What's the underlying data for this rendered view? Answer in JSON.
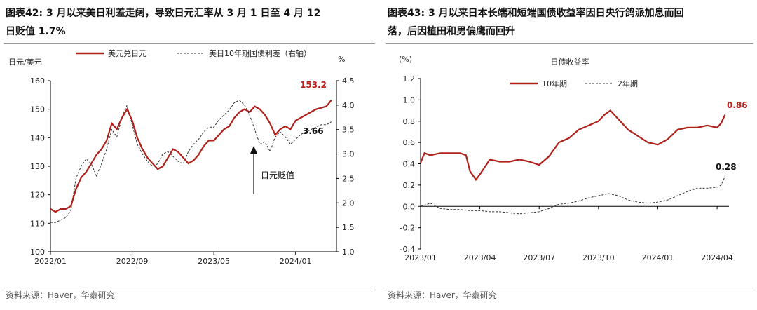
{
  "left": {
    "title_line1": "图表42:  3 月以来美日利差走阔，导致日元汇率从 3 月 1 日至 4 月 12",
    "title_line2": "日贬值 1.7%",
    "source": "资料来源：Haver，华泰研究",
    "chart_data": {
      "type": "line",
      "y_left_label": "日元/美元",
      "y_right_label": "%",
      "y_left_range": [
        100,
        160
      ],
      "y_left_ticks": [
        "100",
        "110",
        "120",
        "130",
        "140",
        "150",
        "160"
      ],
      "y_right_range": [
        1.0,
        4.5
      ],
      "y_right_ticks": [
        "1.0",
        "1.5",
        "2.0",
        "2.5",
        "3.0",
        "3.5",
        "4.0",
        "4.5"
      ],
      "x_ticks": [
        "2022/01",
        "2022/09",
        "2023/05",
        "2024/01"
      ],
      "x_tick_index": [
        0,
        8,
        16,
        24
      ],
      "series": [
        {
          "name": "美元兑日元",
          "axis": "left",
          "color": "#b0211b",
          "style": "solid",
          "x": [
            0,
            0.5,
            1,
            1.5,
            2,
            2.5,
            3,
            3.5,
            4,
            4.5,
            5,
            5.5,
            6,
            6.5,
            7,
            7.5,
            8,
            8.5,
            9,
            9.5,
            10,
            10.5,
            11,
            11.5,
            12,
            12.5,
            13,
            13.5,
            14,
            14.5,
            15,
            15.5,
            16,
            16.5,
            17,
            17.5,
            18,
            18.5,
            19,
            19.5,
            20,
            20.5,
            21,
            21.5,
            22,
            22.5,
            23,
            23.5,
            24,
            24.5,
            25,
            25.5,
            26,
            26.5,
            27,
            27.2,
            27.5
          ],
          "y": [
            115,
            114,
            115,
            115,
            116,
            122,
            126,
            128,
            131,
            134,
            136,
            139,
            145,
            143,
            147,
            150,
            146,
            140,
            136,
            133,
            131,
            129,
            130,
            133,
            136,
            135,
            133,
            131,
            132,
            134,
            137,
            139,
            139,
            141,
            143,
            144,
            147,
            149,
            150,
            149,
            151,
            150,
            148,
            145,
            141,
            143,
            144,
            143,
            146,
            147,
            148,
            149,
            150,
            150.5,
            151,
            151.8,
            153.2
          ]
        },
        {
          "name": "美日10年期国债利差（右轴）",
          "axis": "right",
          "color": "#333333",
          "style": "dashed",
          "x": [
            0,
            0.5,
            1,
            1.5,
            2,
            2.5,
            3,
            3.5,
            4,
            4.5,
            5,
            5.5,
            6,
            6.5,
            7,
            7.5,
            8,
            8.5,
            9,
            9.5,
            10,
            10.5,
            11,
            11.5,
            12,
            12.5,
            13,
            13.5,
            14,
            14.5,
            15,
            15.5,
            16,
            16.5,
            17,
            17.5,
            18,
            18.5,
            19,
            19.5,
            20,
            20.5,
            21,
            21.5,
            22,
            22.5,
            23,
            23.5,
            24,
            24.5,
            25,
            25.5,
            26,
            26.5,
            27,
            27.2,
            27.5
          ],
          "y": [
            1.6,
            1.6,
            1.65,
            1.7,
            1.85,
            2.5,
            2.75,
            2.9,
            2.8,
            2.55,
            2.8,
            3.1,
            3.5,
            3.35,
            3.75,
            4.0,
            3.6,
            3.2,
            3.0,
            2.85,
            2.75,
            2.8,
            3.0,
            3.05,
            2.95,
            2.85,
            2.8,
            3.05,
            3.2,
            3.3,
            3.45,
            3.55,
            3.55,
            3.7,
            3.8,
            3.9,
            4.05,
            4.1,
            4.0,
            3.8,
            3.5,
            3.2,
            3.25,
            3.05,
            3.35,
            3.45,
            3.35,
            3.2,
            3.3,
            3.4,
            3.45,
            3.5,
            3.55,
            3.6,
            3.6,
            3.62,
            3.66
          ]
        }
      ],
      "annotations": [
        {
          "text": "153.2",
          "color": "#c0211b"
        },
        {
          "text": "3.66",
          "color": "#111111"
        },
        {
          "text": "日元贬值",
          "color": "#111111"
        }
      ]
    }
  },
  "right": {
    "title_line1": "图表43:  3 月以来日本长端和短端国债收益率因日央行鸽派加息而回",
    "title_line2": "落，后因植田和男偏鹰而回升",
    "source": "资料来源：Haver，华泰研究",
    "chart_data": {
      "type": "line",
      "unit_label": "(%)",
      "chart_title": "日债收益率",
      "y_range": [
        -0.4,
        1.2
      ],
      "y_ticks": [
        "-0.4",
        "-0.2",
        "0.0",
        "0.2",
        "0.4",
        "0.6",
        "0.8",
        "1.0",
        "1.2"
      ],
      "x_ticks": [
        "2023/01",
        "2023/04",
        "2023/07",
        "2023/10",
        "2024/01",
        "2024/04"
      ],
      "x_tick_index": [
        0,
        3,
        6,
        9,
        12,
        15
      ],
      "series": [
        {
          "name": "10年期",
          "color": "#b0211b",
          "style": "solid",
          "x": [
            0,
            0.2,
            0.5,
            1,
            1.5,
            2,
            2.3,
            2.5,
            2.8,
            3.0,
            3.5,
            4,
            4.5,
            5,
            5.5,
            6,
            6.5,
            7,
            7.5,
            8,
            8.5,
            9,
            9.3,
            9.6,
            10,
            10.5,
            11,
            11.5,
            12,
            12.5,
            13,
            13.5,
            14,
            14.5,
            15,
            15.2,
            15.4
          ],
          "y": [
            0.41,
            0.5,
            0.48,
            0.5,
            0.5,
            0.5,
            0.48,
            0.33,
            0.25,
            0.3,
            0.44,
            0.42,
            0.42,
            0.44,
            0.42,
            0.39,
            0.47,
            0.6,
            0.64,
            0.72,
            0.76,
            0.8,
            0.86,
            0.9,
            0.82,
            0.72,
            0.66,
            0.6,
            0.58,
            0.63,
            0.72,
            0.74,
            0.74,
            0.76,
            0.74,
            0.78,
            0.86
          ]
        },
        {
          "name": "2年期",
          "color": "#333333",
          "style": "dashed",
          "x": [
            0,
            0.5,
            1,
            1.5,
            2,
            2.5,
            3,
            3.5,
            4,
            4.5,
            5,
            5.5,
            6,
            6.5,
            7,
            7.5,
            8,
            8.5,
            9,
            9.5,
            10,
            10.5,
            11,
            11.5,
            12,
            12.5,
            13,
            13.5,
            14,
            14.5,
            15,
            15.2,
            15.4
          ],
          "y": [
            0.0,
            0.03,
            -0.02,
            -0.03,
            -0.03,
            -0.04,
            -0.04,
            -0.05,
            -0.05,
            -0.06,
            -0.07,
            -0.06,
            -0.05,
            -0.02,
            0.02,
            0.03,
            0.05,
            0.08,
            0.1,
            0.12,
            0.1,
            0.06,
            0.04,
            0.03,
            0.04,
            0.06,
            0.1,
            0.14,
            0.17,
            0.17,
            0.18,
            0.2,
            0.28
          ]
        }
      ],
      "annotations": [
        {
          "text": "0.86",
          "color": "#c0211b"
        },
        {
          "text": "0.28",
          "color": "#111111"
        }
      ]
    }
  }
}
